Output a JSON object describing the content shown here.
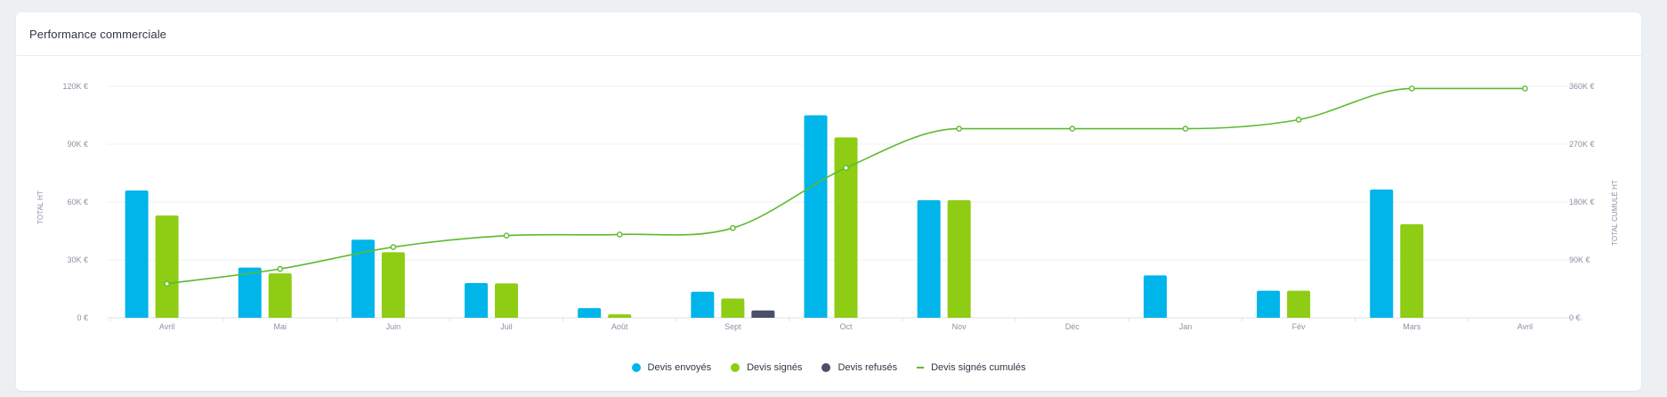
{
  "card": {
    "title": "Performance commerciale"
  },
  "colors": {
    "sent": "#00b5e9",
    "signed": "#8fcc14",
    "refused": "#4b5068",
    "cumulative": "#5bbb2e",
    "grid": "#eef1f4",
    "tick": "#8c92a3"
  },
  "chart_data": {
    "type": "bar",
    "title": "Performance commerciale",
    "ylabel": "TOTAL HT",
    "y2label": "TOTAL CUMULÉ HT",
    "ylim": [
      0,
      120000
    ],
    "y2lim": [
      0,
      360000
    ],
    "yticks": [
      "0 €",
      "30K €",
      "60K €",
      "90K €",
      "120K €"
    ],
    "y2ticks": [
      "0 €",
      "90K €",
      "180K €",
      "270K €",
      "360K €"
    ],
    "grid": true,
    "legend_position": "bottom",
    "categories": [
      "Avril",
      "Mai",
      "Juin",
      "Juil",
      "Août",
      "Sept",
      "Oct",
      "Nov",
      "Déc",
      "Jan",
      "Fév",
      "Mars",
      "Avril"
    ],
    "series": [
      {
        "name": "Devis envoyés",
        "type": "bar",
        "axis": "left",
        "values": [
          66000,
          26000,
          40500,
          18000,
          5000,
          13500,
          105000,
          61000,
          0,
          22000,
          14000,
          66500,
          0
        ]
      },
      {
        "name": "Devis signés",
        "type": "bar",
        "axis": "left",
        "values": [
          53000,
          23000,
          34000,
          17800,
          1800,
          10000,
          93500,
          61000,
          0,
          0,
          14000,
          48500,
          0
        ]
      },
      {
        "name": "Devis refusés",
        "type": "bar",
        "axis": "left",
        "values": [
          0,
          0,
          0,
          0,
          0,
          3800,
          0,
          0,
          0,
          0,
          0,
          0,
          0
        ]
      },
      {
        "name": "Devis signés cumulés",
        "type": "line",
        "axis": "right",
        "values": [
          53000,
          76000,
          110000,
          127800,
          129600,
          139600,
          233100,
          294100,
          294100,
          294100,
          308100,
          356600,
          356600
        ]
      }
    ]
  }
}
